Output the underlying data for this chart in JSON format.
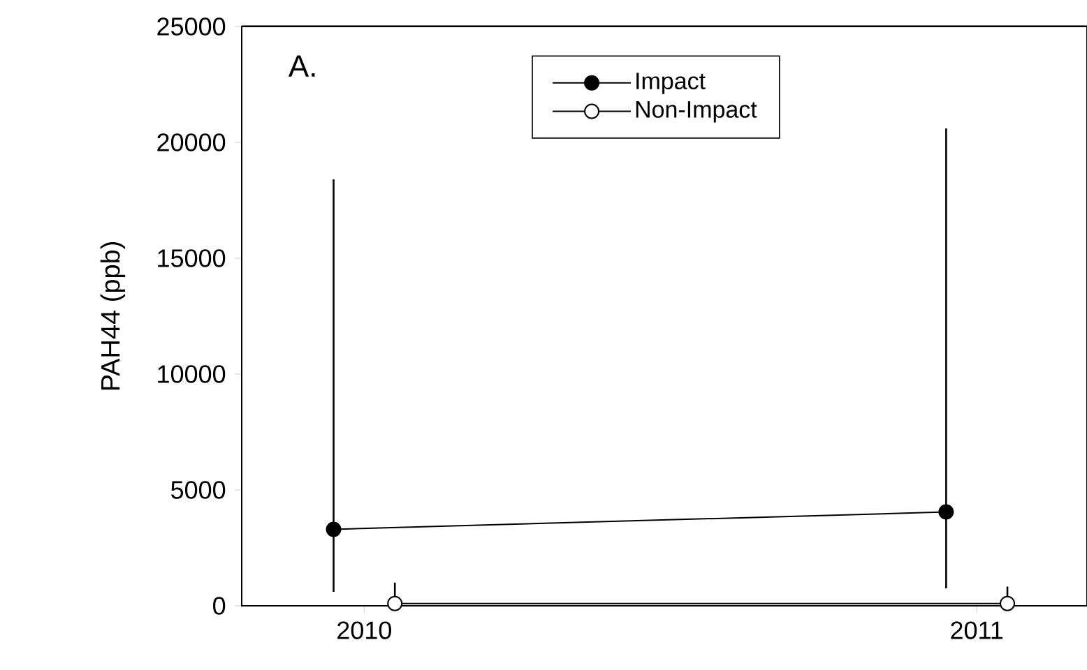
{
  "chart_data": {
    "type": "line",
    "ylabel": "PAH44 (ppb)",
    "annotations": [
      "A."
    ],
    "xlim": [
      2009.8,
      2011.18
    ],
    "xticks": [
      2010,
      2011
    ],
    "ylim": [
      0,
      25000
    ],
    "yticks": [
      0,
      5000,
      10000,
      15000,
      20000,
      25000
    ],
    "legend": "top",
    "marker": "circle",
    "line_style": "solid",
    "grid": false,
    "series": [
      {
        "name": "Impact",
        "color": "#000000",
        "x": [
          2009.95,
          2010.95
        ],
        "values": [
          3300,
          4050
        ],
        "errors": [
          [
            600,
            18400
          ],
          [
            750,
            20600
          ]
        ]
      },
      {
        "name": "Non-Impact",
        "color": "#ffffff",
        "x": [
          2010.05,
          2011.05
        ],
        "values": [
          100,
          100
        ],
        "errors": [
          [
            0,
            1000
          ],
          [
            0,
            830
          ]
        ]
      }
    ]
  }
}
